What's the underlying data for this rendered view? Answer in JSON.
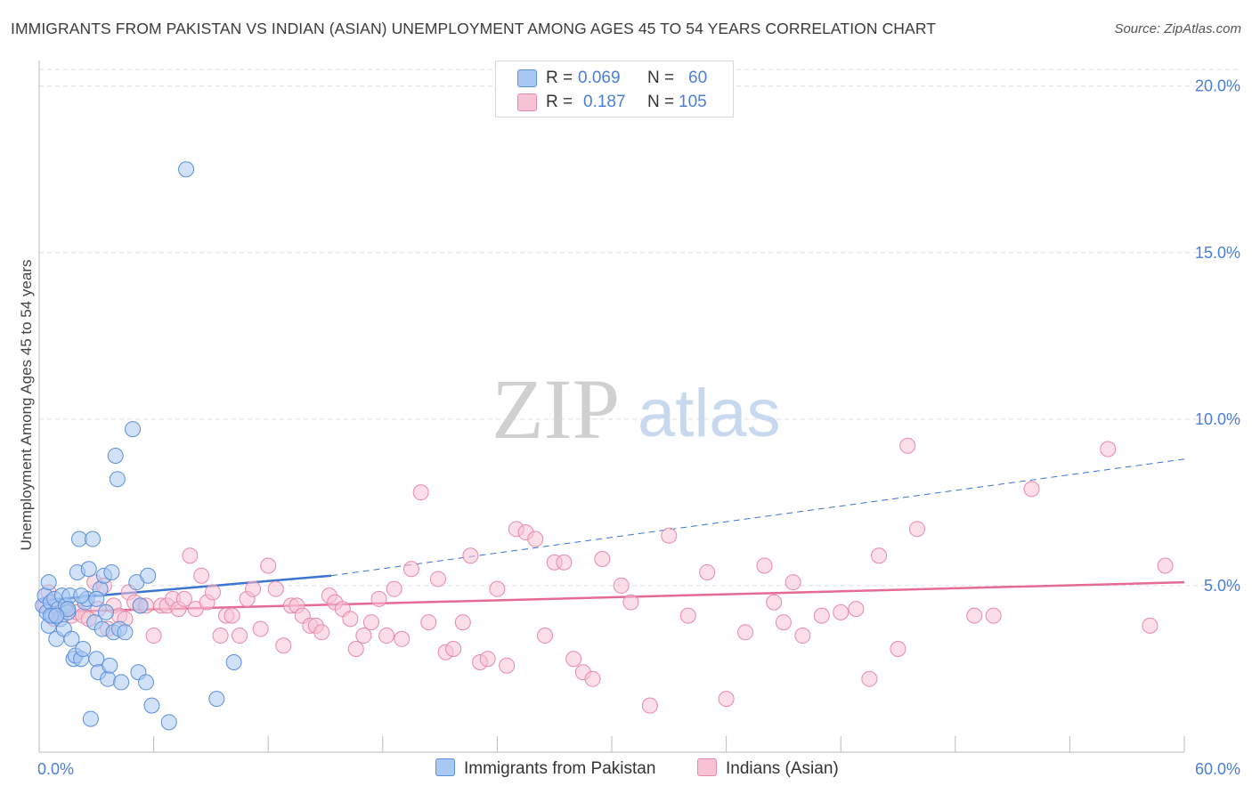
{
  "header": {
    "title": "IMMIGRANTS FROM PAKISTAN VS INDIAN (ASIAN) UNEMPLOYMENT AMONG AGES 45 TO 54 YEARS CORRELATION CHART",
    "source": "Source: ZipAtlas.com"
  },
  "legend": {
    "r_label": "R =",
    "n_label": "N =",
    "rows": [
      {
        "r": "0.069",
        "n": "60"
      },
      {
        "r": "0.187",
        "n": "105"
      }
    ]
  },
  "watermark": {
    "zip": "ZIP",
    "atlas": "atlas"
  },
  "colors": {
    "pakistan_fill": "#a9c8f2",
    "pakistan_stroke": "#5b8fd9",
    "pakistan_line": "#3a74d4",
    "indian_fill": "#f7c3d4",
    "indian_stroke": "#e68aa8",
    "indian_line": "#e56b96",
    "axis_label": "#4a7fd6",
    "grid": "#dddddd"
  },
  "chart_data": {
    "type": "scatter",
    "title": "IMMIGRANTS FROM PAKISTAN VS INDIAN (ASIAN) UNEMPLOYMENT AMONG AGES 45 TO 54 YEARS CORRELATION CHART",
    "xlabel": "",
    "ylabel": "Unemployment Among Ages 45 to 54 years",
    "xlim": [
      0,
      60
    ],
    "ylim": [
      0,
      20.5
    ],
    "x_tick_labels": [
      {
        "value": 0,
        "label": "0.0%"
      },
      {
        "value": 60,
        "label": "60.0%"
      }
    ],
    "y_tick_labels": [
      {
        "value": 5,
        "label": "5.0%"
      },
      {
        "value": 10,
        "label": "10.0%"
      },
      {
        "value": 15,
        "label": "15.0%"
      },
      {
        "value": 20,
        "label": "20.0%"
      }
    ],
    "series": [
      {
        "name": "Immigrants from Pakistan",
        "points": [
          [
            0.2,
            4.4
          ],
          [
            0.3,
            4.7
          ],
          [
            0.4,
            4.2
          ],
          [
            0.5,
            5.1
          ],
          [
            0.5,
            3.8
          ],
          [
            0.6,
            4.5
          ],
          [
            0.7,
            4.1
          ],
          [
            0.8,
            4.6
          ],
          [
            0.9,
            3.4
          ],
          [
            1.0,
            4.3
          ],
          [
            1.1,
            4.0
          ],
          [
            1.2,
            4.7
          ],
          [
            1.3,
            3.7
          ],
          [
            1.4,
            4.4
          ],
          [
            1.5,
            4.2
          ],
          [
            1.6,
            4.7
          ],
          [
            1.7,
            3.4
          ],
          [
            1.8,
            2.8
          ],
          [
            1.9,
            2.9
          ],
          [
            2.0,
            5.4
          ],
          [
            2.1,
            6.4
          ],
          [
            2.2,
            2.8
          ],
          [
            2.3,
            3.1
          ],
          [
            2.4,
            4.5
          ],
          [
            2.5,
            4.6
          ],
          [
            2.6,
            5.5
          ],
          [
            2.7,
            1.0
          ],
          [
            2.8,
            6.4
          ],
          [
            2.9,
            3.9
          ],
          [
            3.0,
            2.8
          ],
          [
            3.1,
            2.4
          ],
          [
            3.2,
            4.9
          ],
          [
            3.3,
            3.7
          ],
          [
            3.4,
            5.3
          ],
          [
            3.5,
            4.2
          ],
          [
            3.6,
            2.2
          ],
          [
            3.7,
            2.6
          ],
          [
            3.8,
            5.4
          ],
          [
            3.9,
            3.6
          ],
          [
            4.0,
            8.9
          ],
          [
            4.1,
            8.2
          ],
          [
            4.2,
            3.7
          ],
          [
            4.3,
            2.1
          ],
          [
            4.5,
            3.6
          ],
          [
            4.9,
            9.7
          ],
          [
            5.1,
            5.1
          ],
          [
            5.2,
            2.4
          ],
          [
            5.3,
            4.4
          ],
          [
            5.6,
            2.1
          ],
          [
            5.7,
            5.3
          ],
          [
            5.9,
            1.4
          ],
          [
            6.8,
            0.9
          ],
          [
            7.7,
            17.5
          ],
          [
            9.3,
            1.6
          ],
          [
            10.2,
            2.7
          ],
          [
            0.6,
            4.1
          ],
          [
            1.5,
            4.3
          ],
          [
            2.2,
            4.7
          ],
          [
            3.0,
            4.6
          ],
          [
            0.9,
            4.1
          ]
        ],
        "trend": {
          "solid": [
            [
              0,
              4.55
            ],
            [
              15.3,
              5.3
            ]
          ],
          "dashed": [
            [
              15.3,
              5.3
            ],
            [
              60,
              8.8
            ]
          ]
        }
      },
      {
        "name": "Indians (Asian)",
        "points": [
          [
            0.3,
            4.4
          ],
          [
            0.5,
            4.8
          ],
          [
            0.8,
            4.0
          ],
          [
            1.1,
            4.2
          ],
          [
            1.4,
            4.3
          ],
          [
            1.7,
            4.1
          ],
          [
            2.0,
            4.2
          ],
          [
            2.3,
            4.1
          ],
          [
            2.6,
            4.0
          ],
          [
            2.9,
            5.1
          ],
          [
            3.1,
            4.3
          ],
          [
            3.4,
            5.0
          ],
          [
            3.6,
            3.7
          ],
          [
            3.9,
            4.4
          ],
          [
            4.2,
            4.1
          ],
          [
            4.5,
            4.0
          ],
          [
            4.7,
            4.8
          ],
          [
            5.0,
            4.5
          ],
          [
            5.3,
            4.4
          ],
          [
            5.6,
            4.4
          ],
          [
            6.0,
            3.5
          ],
          [
            6.4,
            4.4
          ],
          [
            6.7,
            4.4
          ],
          [
            7.0,
            4.6
          ],
          [
            7.3,
            4.3
          ],
          [
            7.6,
            4.6
          ],
          [
            7.9,
            5.9
          ],
          [
            8.2,
            4.3
          ],
          [
            8.5,
            5.3
          ],
          [
            8.8,
            4.5
          ],
          [
            9.1,
            4.8
          ],
          [
            9.5,
            3.5
          ],
          [
            9.8,
            4.1
          ],
          [
            10.1,
            4.1
          ],
          [
            10.5,
            3.5
          ],
          [
            10.9,
            4.6
          ],
          [
            11.2,
            4.9
          ],
          [
            11.6,
            3.7
          ],
          [
            12.0,
            5.6
          ],
          [
            12.4,
            4.9
          ],
          [
            12.8,
            3.2
          ],
          [
            13.2,
            4.4
          ],
          [
            13.5,
            4.4
          ],
          [
            13.8,
            4.1
          ],
          [
            14.2,
            3.8
          ],
          [
            14.5,
            3.8
          ],
          [
            14.8,
            3.6
          ],
          [
            15.2,
            4.7
          ],
          [
            15.5,
            4.5
          ],
          [
            15.9,
            4.3
          ],
          [
            16.3,
            4.0
          ],
          [
            16.6,
            3.1
          ],
          [
            17.0,
            3.5
          ],
          [
            17.4,
            3.9
          ],
          [
            17.8,
            4.6
          ],
          [
            18.2,
            3.5
          ],
          [
            18.6,
            4.9
          ],
          [
            19.0,
            3.4
          ],
          [
            19.5,
            5.5
          ],
          [
            20.0,
            7.8
          ],
          [
            20.4,
            3.9
          ],
          [
            20.9,
            5.2
          ],
          [
            21.3,
            3.0
          ],
          [
            21.7,
            3.1
          ],
          [
            22.2,
            3.9
          ],
          [
            22.6,
            5.9
          ],
          [
            23.1,
            2.7
          ],
          [
            23.5,
            2.8
          ],
          [
            24.0,
            4.9
          ],
          [
            24.5,
            2.6
          ],
          [
            25.0,
            6.7
          ],
          [
            25.5,
            6.6
          ],
          [
            26.0,
            6.4
          ],
          [
            26.5,
            3.5
          ],
          [
            27.0,
            5.7
          ],
          [
            27.5,
            5.7
          ],
          [
            28.0,
            2.8
          ],
          [
            28.5,
            2.4
          ],
          [
            29.0,
            2.2
          ],
          [
            29.5,
            5.8
          ],
          [
            30.5,
            5.0
          ],
          [
            31.0,
            4.5
          ],
          [
            32.0,
            1.4
          ],
          [
            33.0,
            6.5
          ],
          [
            34.0,
            4.1
          ],
          [
            35.0,
            5.4
          ],
          [
            36.0,
            1.6
          ],
          [
            37.0,
            3.6
          ],
          [
            38.0,
            5.6
          ],
          [
            38.5,
            4.5
          ],
          [
            39.0,
            3.9
          ],
          [
            39.5,
            5.1
          ],
          [
            40.0,
            3.5
          ],
          [
            41.0,
            4.1
          ],
          [
            42.0,
            4.2
          ],
          [
            42.8,
            4.3
          ],
          [
            43.5,
            2.2
          ],
          [
            44.0,
            5.9
          ],
          [
            45.0,
            3.1
          ],
          [
            45.5,
            9.2
          ],
          [
            46.0,
            6.7
          ],
          [
            49.0,
            4.1
          ],
          [
            50.0,
            4.1
          ],
          [
            52.0,
            7.9
          ],
          [
            56.0,
            9.1
          ]
        ],
        "extra_points": [
          [
            58.2,
            3.8
          ],
          [
            59.0,
            5.6
          ]
        ],
        "trend": {
          "solid": [
            [
              0,
              4.2
            ],
            [
              60,
              5.1
            ]
          ]
        }
      }
    ]
  },
  "bottom_legend": {
    "items": [
      "Immigrants from Pakistan",
      "Indians (Asian)"
    ]
  }
}
